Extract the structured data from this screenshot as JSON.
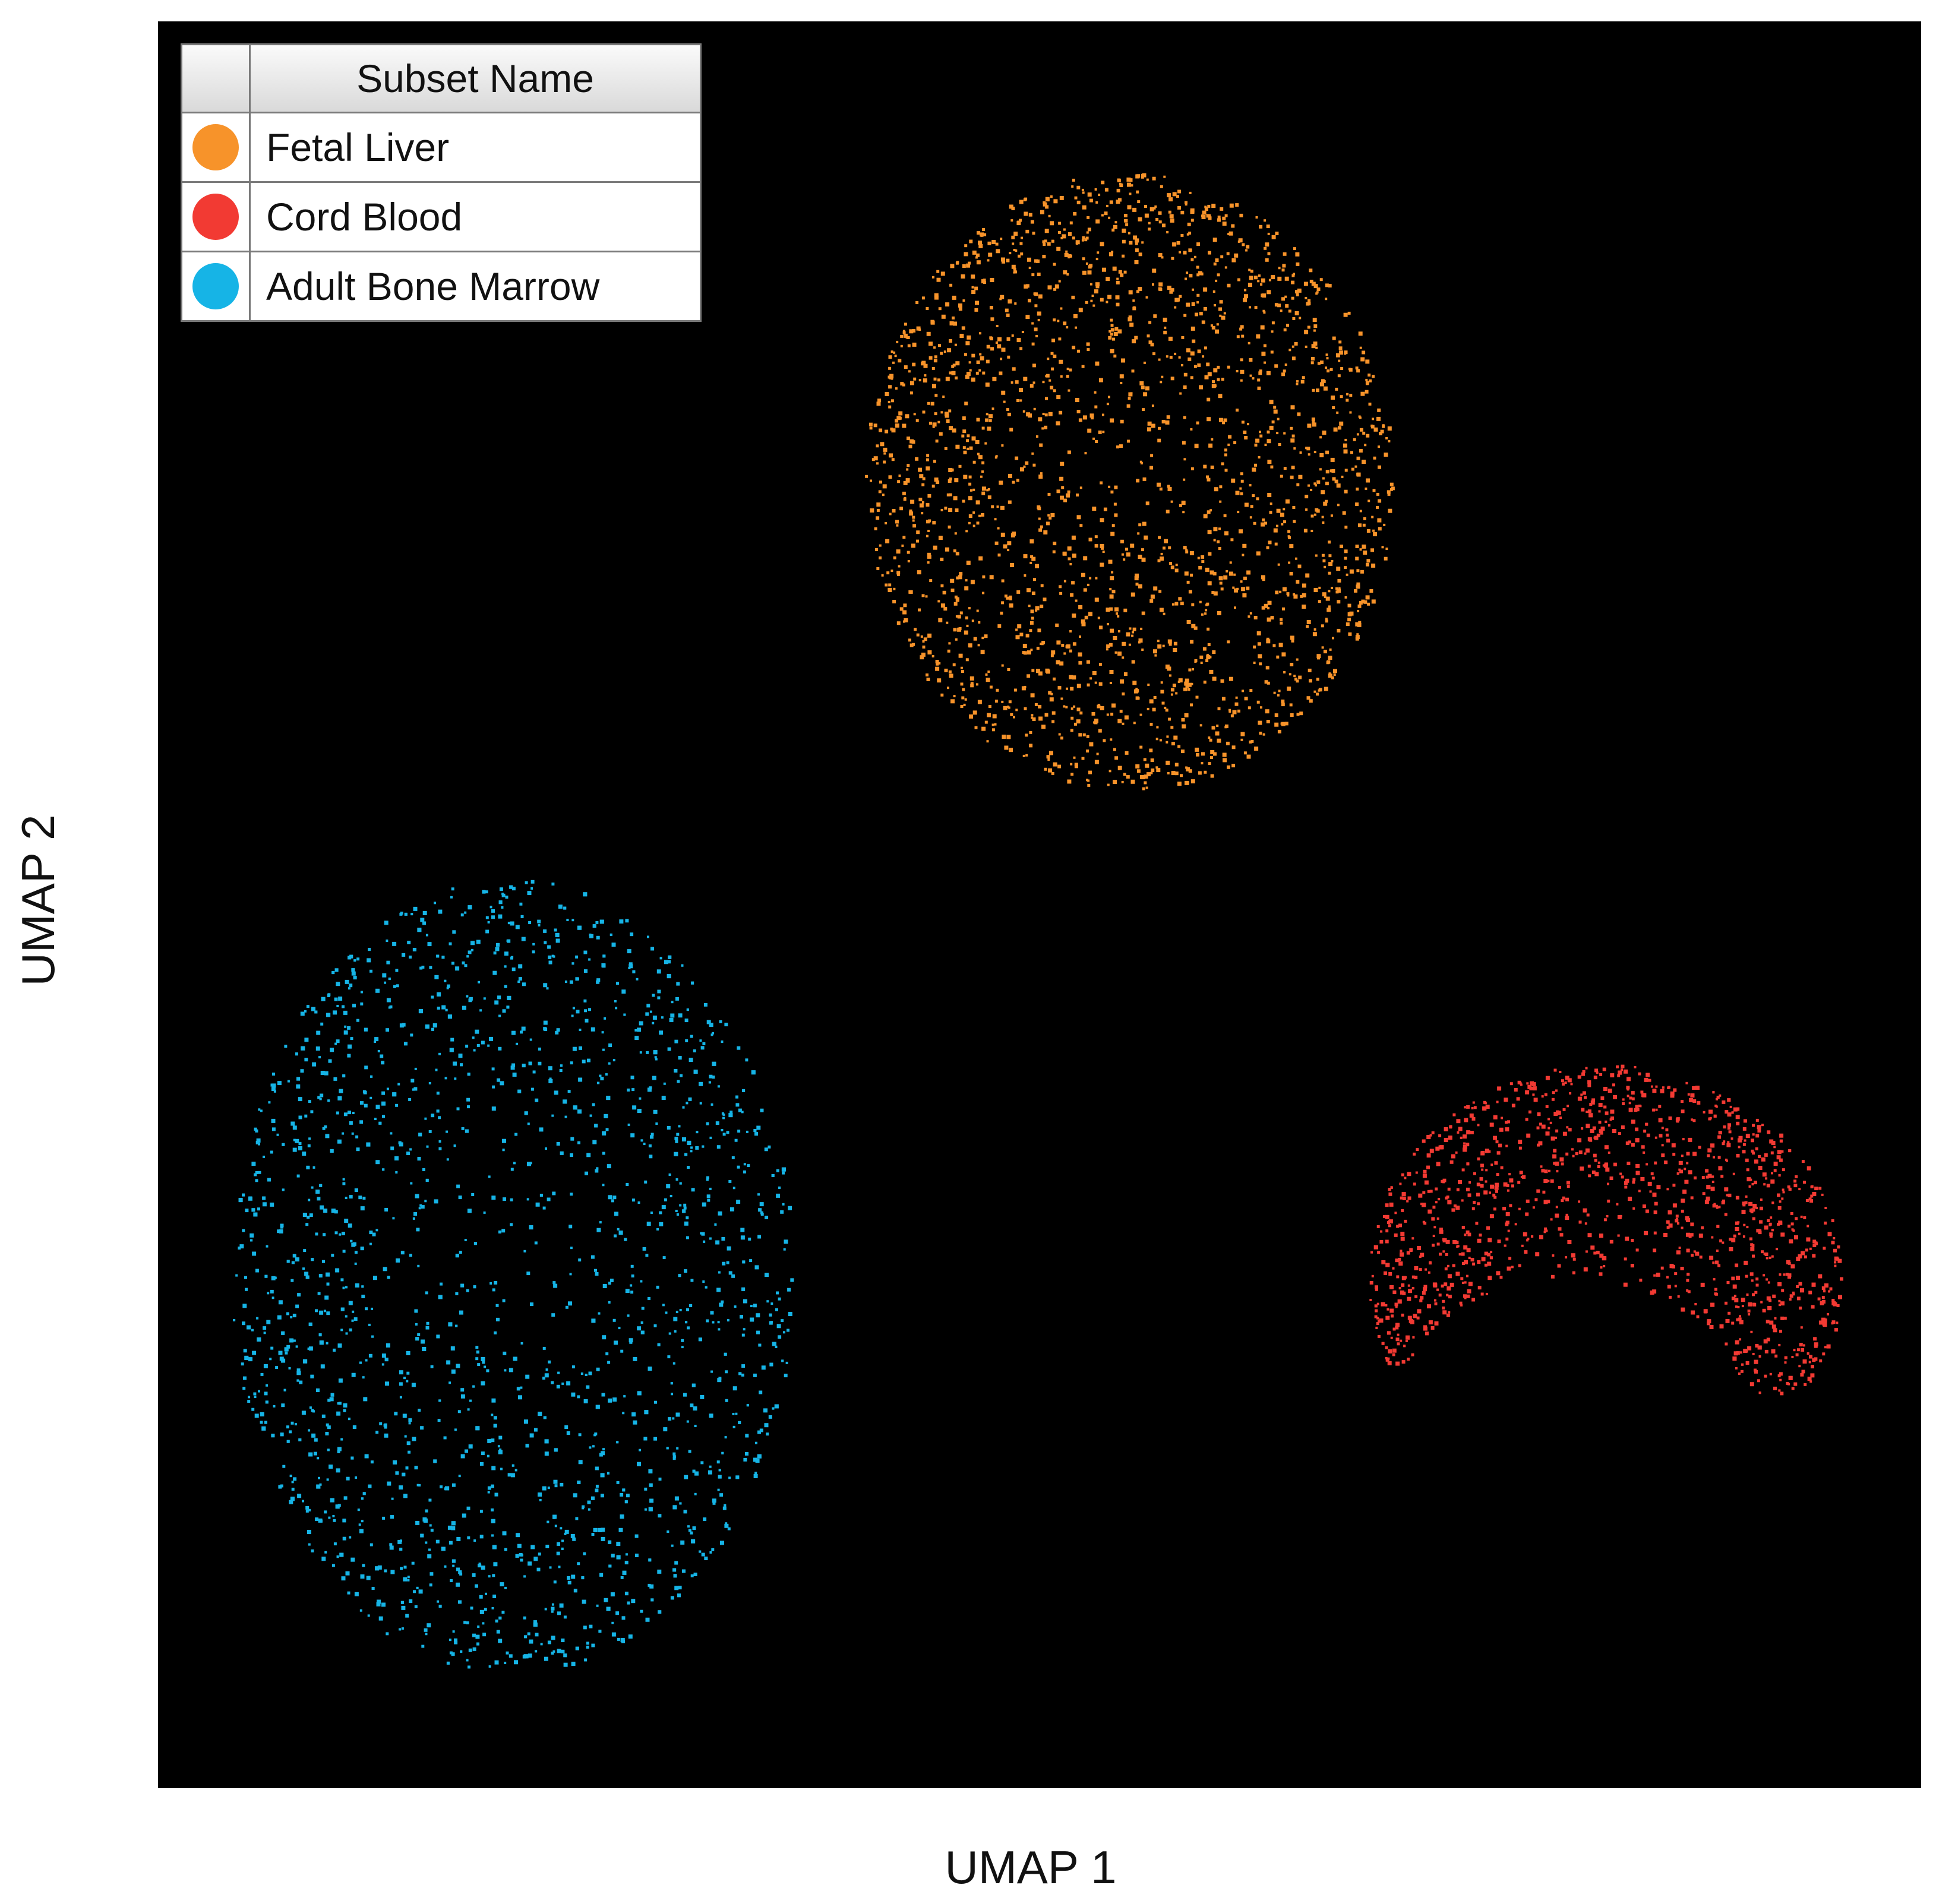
{
  "chart_data": {
    "type": "scatter",
    "xlabel": "UMAP 1",
    "ylabel": "UMAP 2",
    "background": "#000000",
    "grid": false,
    "legend": {
      "placement": "top-left",
      "header": "Subset Name",
      "entries": [
        {
          "name": "Fetal Liver",
          "color": "#f7932a"
        },
        {
          "name": "Cord Blood",
          "color": "#f23a33"
        },
        {
          "name": "Adult Bone Marrow",
          "color": "#16b4e6"
        }
      ]
    },
    "series": [
      {
        "name": "Fetal Liver",
        "color": "#f7932a",
        "cluster": {
          "shape": "ellipse",
          "center": [
            0.55,
            0.74
          ],
          "radius": [
            0.15,
            0.175
          ]
        }
      },
      {
        "name": "Cord Blood",
        "color": "#f23a33",
        "cluster": {
          "shape": "crescent",
          "center": [
            0.82,
            0.29
          ],
          "radius": [
            0.135,
            0.12
          ]
        }
      },
      {
        "name": "Adult Bone Marrow",
        "color": "#16b4e6",
        "cluster": {
          "shape": "ellipse",
          "center": [
            0.2,
            0.29
          ],
          "radius": [
            0.16,
            0.225
          ]
        }
      }
    ]
  }
}
